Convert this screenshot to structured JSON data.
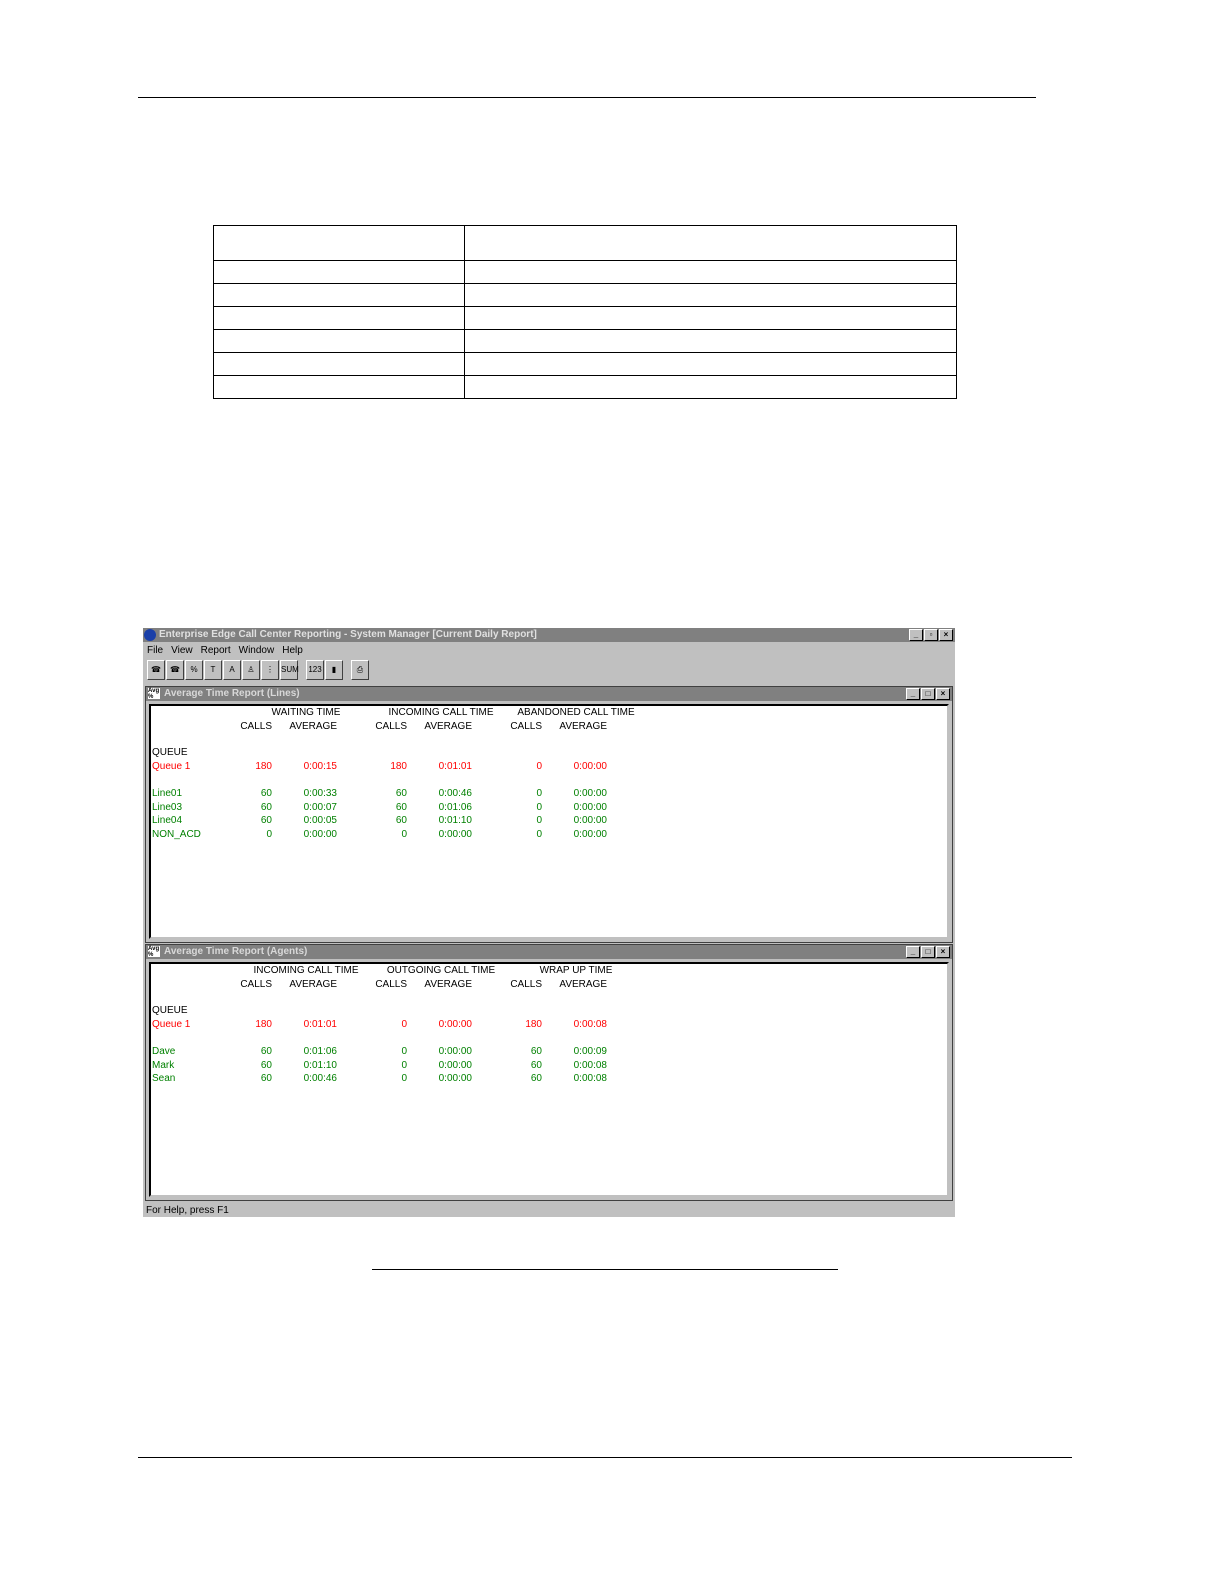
{
  "app": {
    "title": "Enterprise Edge Call Center Reporting - System Manager [Current Daily Report]",
    "menu": [
      "File",
      "View",
      "Report",
      "Window",
      "Help"
    ],
    "toolbar_icons": [
      "phone-icon",
      "phone-alert-icon",
      "skill-icon",
      "toc-icon",
      "avg-icon",
      "agent-icon",
      "traffic-light-icon",
      "sum-icon",
      "numbers-icon",
      "chart-icon",
      "print-icon"
    ],
    "status": "For Help, press F1",
    "colors": {
      "queue": "#ff0000",
      "line": "#008000"
    }
  },
  "lines_report": {
    "title": "Average Time Report (Lines)",
    "groups": [
      "WAITING TIME",
      "INCOMING CALL TIME",
      "ABANDONED CALL TIME"
    ],
    "sub": [
      "CALLS",
      "AVERAGE"
    ],
    "section": "QUEUE",
    "queue": [
      "Queue 1",
      "180",
      "0:00:15",
      "180",
      "0:01:01",
      "0",
      "0:00:00"
    ],
    "rows": [
      [
        "Line01",
        "60",
        "0:00:33",
        "60",
        "0:00:46",
        "0",
        "0:00:00"
      ],
      [
        "Line03",
        "60",
        "0:00:07",
        "60",
        "0:01:06",
        "0",
        "0:00:00"
      ],
      [
        "Line04",
        "60",
        "0:00:05",
        "60",
        "0:01:10",
        "0",
        "0:00:00"
      ],
      [
        "NON_ACD",
        "0",
        "0:00:00",
        "0",
        "0:00:00",
        "0",
        "0:00:00"
      ]
    ]
  },
  "agents_report": {
    "title": "Average Time Report (Agents)",
    "groups": [
      "INCOMING CALL TIME",
      "OUTGOING CALL TIME",
      "WRAP UP TIME"
    ],
    "sub": [
      "CALLS",
      "AVERAGE"
    ],
    "section": "QUEUE",
    "queue": [
      "Queue 1",
      "180",
      "0:01:01",
      "0",
      "0:00:00",
      "180",
      "0:00:08"
    ],
    "rows": [
      [
        "Dave",
        "60",
        "0:01:06",
        "0",
        "0:00:00",
        "60",
        "0:00:09"
      ],
      [
        "Mark",
        "60",
        "0:01:10",
        "0",
        "0:00:00",
        "60",
        "0:00:08"
      ],
      [
        "Sean",
        "60",
        "0:00:46",
        "0",
        "0:00:00",
        "60",
        "0:00:08"
      ]
    ]
  }
}
